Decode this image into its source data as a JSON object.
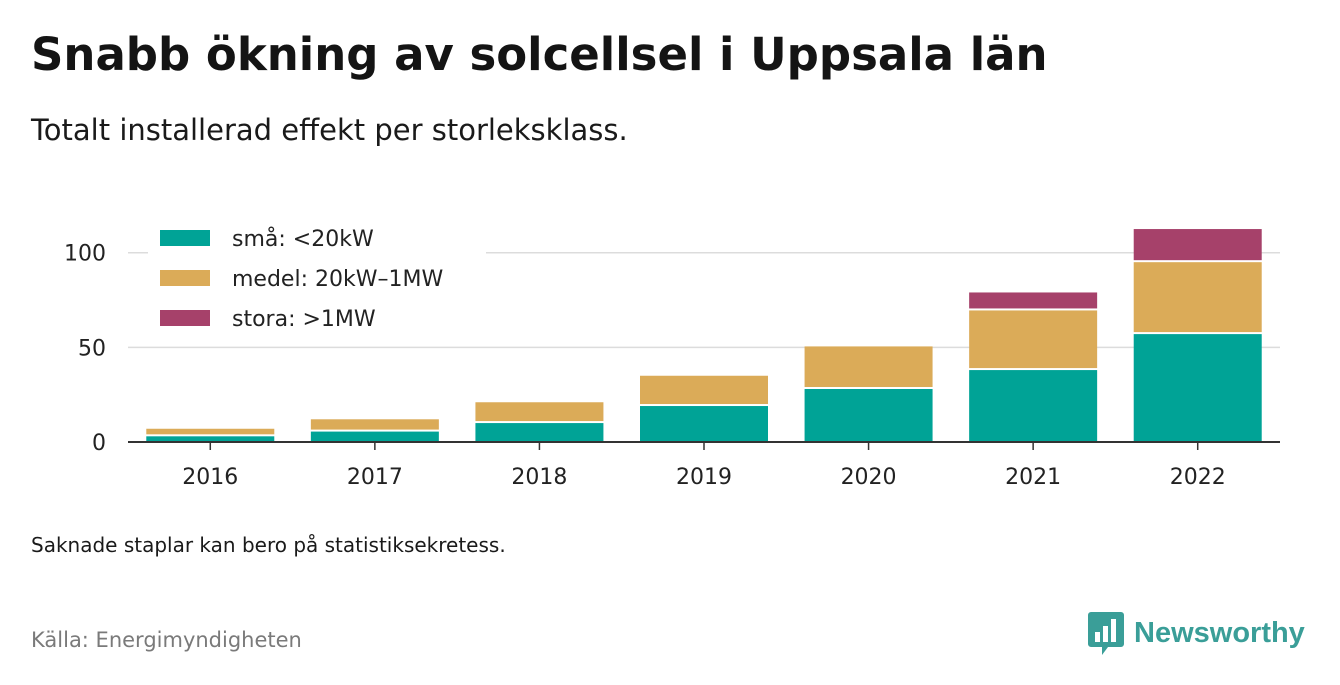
{
  "header": {
    "title": "Snabb ökning av solcellsel i Uppsala län",
    "subtitle": "Totalt installerad effekt per storleksklass."
  },
  "footer": {
    "note": "Saknade staplar kan bero på statistiksekretess.",
    "source": "Källa: Energimyndigheten",
    "brand": "Newsworthy",
    "brand_icon": "newsworthy-logo-icon",
    "brand_color": "#3a9e98"
  },
  "chart_data": {
    "type": "bar",
    "stacked": true,
    "title": "Snabb ökning av solcellsel i Uppsala län",
    "subtitle": "Totalt installerad effekt per storleksklass.",
    "xlabel": "",
    "ylabel": "",
    "categories": [
      "2016",
      "2017",
      "2018",
      "2019",
      "2020",
      "2021",
      "2022"
    ],
    "series": [
      {
        "name": "små: <20kW",
        "color": "#00a396",
        "values": [
          3,
          5.5,
          10,
          19,
          28,
          38,
          57
        ]
      },
      {
        "name": "medel: 20kW–1MW",
        "color": "#dbab58",
        "values": [
          4,
          6.5,
          11,
          16,
          22.5,
          31.5,
          38
        ]
      },
      {
        "name": "stora: >1MW",
        "color": "#a6416a",
        "values": [
          0,
          0,
          0,
          0,
          0,
          9.5,
          17.5
        ]
      }
    ],
    "ylim": [
      0,
      112
    ],
    "yticks": [
      0,
      50,
      100
    ],
    "grid": true,
    "legend_position": "top-left"
  }
}
